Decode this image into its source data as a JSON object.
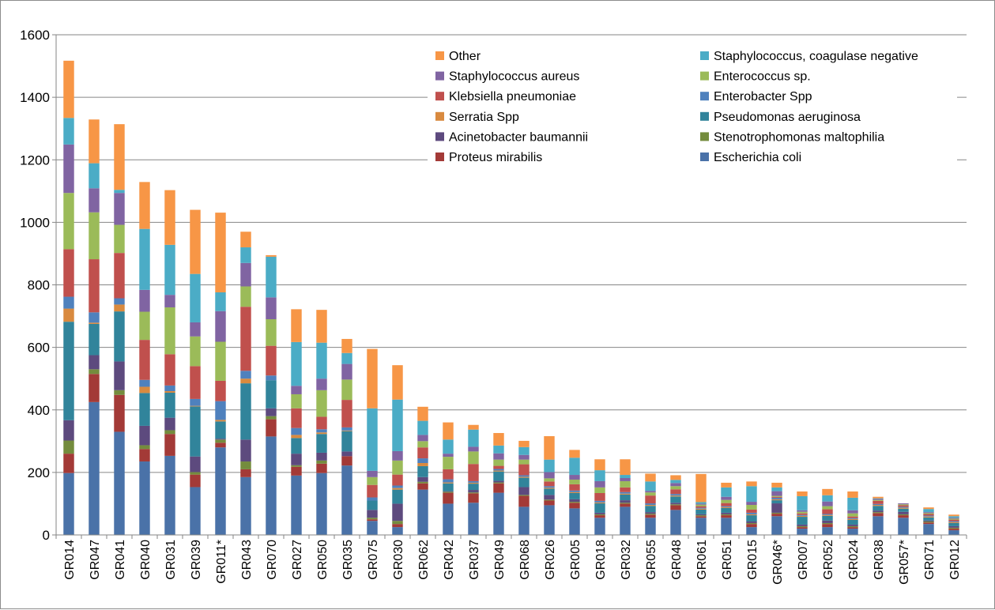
{
  "chart_data": {
    "type": "bar",
    "stacked": true,
    "title": "",
    "xlabel": "",
    "ylabel": "",
    "ylim": [
      0,
      1600
    ],
    "yticks": [
      0,
      200,
      400,
      600,
      800,
      1000,
      1200,
      1400,
      1600
    ],
    "grid": true,
    "legend_position": "top-right (inside plot, two columns)",
    "categories": [
      "GR014",
      "GR047",
      "GR041",
      "GR040",
      "GR031",
      "GR039",
      "GR011*",
      "GR043",
      "GR070",
      "GR027",
      "GR050",
      "GR035",
      "GR075",
      "GR030",
      "GR062",
      "GR042",
      "GR037",
      "GR049",
      "GR068",
      "GR026",
      "GR005",
      "GR018",
      "GR032",
      "GR055",
      "GR048",
      "GR061",
      "GR051",
      "GR015",
      "GR046*",
      "GR007",
      "GR052",
      "GR024",
      "GR038",
      "GR057*",
      "GR071",
      "GR012"
    ],
    "series": [
      {
        "name": "Escherichia coli",
        "color": "#4a72a8",
        "values": [
          198,
          425,
          330,
          235,
          253,
          153,
          280,
          185,
          315,
          190,
          198,
          222,
          45,
          25,
          145,
          100,
          103,
          135,
          90,
          95,
          85,
          55,
          90,
          55,
          80,
          55,
          55,
          25,
          60,
          20,
          25,
          20,
          60,
          55,
          35,
          15
        ]
      },
      {
        "name": "Proteus mirabilis",
        "color": "#a33a37",
        "values": [
          62,
          90,
          118,
          40,
          70,
          40,
          15,
          25,
          55,
          28,
          30,
          30,
          5,
          10,
          20,
          35,
          30,
          30,
          35,
          15,
          18,
          8,
          10,
          10,
          15,
          5,
          8,
          10,
          8,
          5,
          10,
          5,
          10,
          8,
          5,
          5
        ]
      },
      {
        "name": "Stenotrophomonas maltophilia",
        "color": "#748c3d",
        "values": [
          42,
          15,
          15,
          12,
          12,
          8,
          10,
          25,
          10,
          5,
          10,
          0,
          5,
          10,
          5,
          3,
          3,
          3,
          3,
          3,
          3,
          3,
          3,
          3,
          3,
          3,
          3,
          3,
          3,
          3,
          3,
          3,
          3,
          3,
          3,
          3
        ]
      },
      {
        "name": "Acinetobacter baumannii",
        "color": "#5d4a7e",
        "values": [
          65,
          45,
          92,
          62,
          40,
          50,
          3,
          70,
          25,
          37,
          25,
          15,
          25,
          55,
          15,
          2,
          8,
          5,
          25,
          15,
          8,
          5,
          8,
          5,
          5,
          3,
          5,
          5,
          30,
          5,
          8,
          5,
          5,
          8,
          3,
          5
        ]
      },
      {
        "name": "Pseudomonas aeruginosa",
        "color": "#31849b",
        "values": [
          315,
          100,
          160,
          105,
          80,
          160,
          55,
          180,
          90,
          50,
          60,
          65,
          30,
          45,
          35,
          25,
          20,
          30,
          30,
          20,
          20,
          30,
          18,
          20,
          20,
          15,
          15,
          20,
          10,
          25,
          15,
          15,
          15,
          10,
          10,
          10
        ]
      },
      {
        "name": "Serratia Spp",
        "color": "#d98a3f",
        "values": [
          42,
          4,
          22,
          20,
          5,
          2,
          5,
          15,
          0,
          10,
          5,
          2,
          0,
          5,
          10,
          3,
          3,
          3,
          3,
          3,
          3,
          3,
          3,
          3,
          3,
          3,
          3,
          3,
          3,
          3,
          3,
          3,
          3,
          3,
          3,
          3
        ]
      },
      {
        "name": "Enterobacter Spp",
        "color": "#4f81bd",
        "values": [
          38,
          33,
          20,
          22,
          18,
          22,
          60,
          25,
          15,
          22,
          10,
          10,
          10,
          8,
          15,
          10,
          5,
          5,
          5,
          5,
          5,
          5,
          5,
          5,
          5,
          3,
          3,
          5,
          5,
          3,
          3,
          3,
          3,
          3,
          3,
          3
        ]
      },
      {
        "name": "Klebsiella pneumoniae",
        "color": "#c0504d",
        "values": [
          152,
          170,
          145,
          128,
          100,
          105,
          65,
          205,
          95,
          63,
          40,
          88,
          40,
          35,
          35,
          32,
          55,
          10,
          35,
          15,
          20,
          25,
          15,
          25,
          15,
          5,
          10,
          10,
          3,
          5,
          15,
          5,
          10,
          5,
          5,
          5
        ]
      },
      {
        "name": "Enterococcus sp.",
        "color": "#9bbb59",
        "values": [
          180,
          150,
          90,
          90,
          150,
          95,
          125,
          65,
          85,
          45,
          85,
          65,
          25,
          45,
          20,
          40,
          40,
          20,
          15,
          10,
          15,
          18,
          20,
          10,
          10,
          5,
          10,
          15,
          3,
          5,
          10,
          10,
          3,
          3,
          3,
          3
        ]
      },
      {
        "name": "Staphylococcus aureus",
        "color": "#8064a2",
        "values": [
          155,
          77,
          102,
          70,
          40,
          45,
          98,
          75,
          70,
          27,
          37,
          50,
          20,
          30,
          20,
          10,
          15,
          20,
          15,
          20,
          15,
          20,
          10,
          5,
          10,
          3,
          10,
          10,
          15,
          5,
          15,
          10,
          3,
          3,
          3,
          3
        ]
      },
      {
        "name": "Staphylococcus, coagulase negative",
        "color": "#4bacc6",
        "values": [
          85,
          80,
          10,
          195,
          160,
          155,
          60,
          50,
          130,
          140,
          115,
          35,
          200,
          165,
          45,
          45,
          55,
          25,
          25,
          40,
          55,
          35,
          10,
          30,
          10,
          5,
          30,
          50,
          12,
          45,
          20,
          40,
          2,
          0,
          10,
          5
        ]
      },
      {
        "name": "Other",
        "color": "#f79646",
        "values": [
          183,
          140,
          210,
          150,
          175,
          205,
          255,
          50,
          5,
          105,
          105,
          45,
          190,
          110,
          45,
          55,
          15,
          40,
          20,
          75,
          25,
          35,
          50,
          25,
          15,
          90,
          15,
          15,
          15,
          15,
          20,
          20,
          5,
          0,
          5,
          5
        ]
      }
    ]
  },
  "legend": {
    "order": [
      "Other",
      "Staphylococcus, coagulase negative",
      "Staphylococcus aureus",
      "Enterococcus sp.",
      "Klebsiella pneumoniae",
      "Enterobacter Spp",
      "Serratia Spp",
      "Pseudomonas aeruginosa",
      "Acinetobacter baumannii",
      "Stenotrophomonas maltophilia",
      "Proteus mirabilis",
      "Escherichia coli"
    ]
  }
}
